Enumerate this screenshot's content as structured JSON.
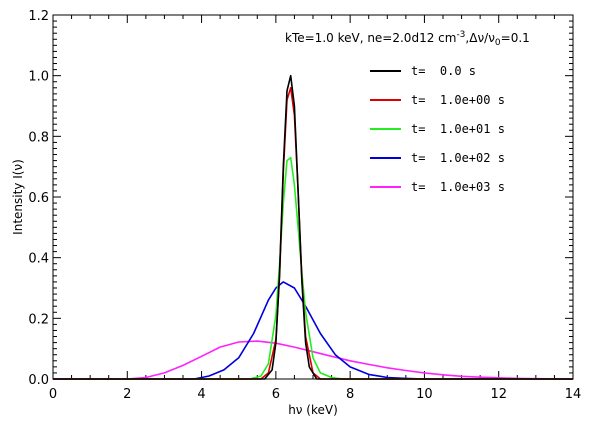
{
  "chart_data": {
    "type": "line",
    "annotation": {
      "kte": "kTe=1.0 keV, ne=2.0d12 cm",
      "exp": "-3",
      "dnu": ",Δν/ν",
      "sub": "0",
      "eq": "=0.1"
    },
    "xlabel": "hν (keV)",
    "ylabel": "Intensity I(ν)",
    "xlim": [
      0,
      14
    ],
    "ylim": [
      0,
      1.2
    ],
    "x_ticks": [
      0,
      2,
      4,
      6,
      8,
      10,
      12,
      14
    ],
    "x_tick_labels": [
      "0",
      "2",
      "4",
      "6",
      "8",
      "10",
      "12",
      "14"
    ],
    "y_ticks": [
      0,
      0.2,
      0.4,
      0.6,
      0.8,
      1.0,
      1.2
    ],
    "y_tick_labels": [
      "0.0",
      "0.2",
      "0.4",
      "0.6",
      "0.8",
      "1.0",
      "1.2"
    ],
    "legend_position": "top-right",
    "series": [
      {
        "name": "t=  0.0 s",
        "color": "#000000",
        "x": [
          0,
          5.7,
          5.9,
          6.0,
          6.1,
          6.2,
          6.3,
          6.4,
          6.5,
          6.6,
          6.7,
          6.8,
          6.9,
          7.1,
          14
        ],
        "y": [
          0,
          0.0,
          0.03,
          0.12,
          0.35,
          0.7,
          0.95,
          1.0,
          0.9,
          0.62,
          0.32,
          0.12,
          0.04,
          0.0,
          0
        ]
      },
      {
        "name": "t=  1.0e+00 s",
        "color": "#dd0000",
        "x": [
          0,
          5.6,
          5.8,
          6.0,
          6.1,
          6.2,
          6.3,
          6.4,
          6.5,
          6.6,
          6.7,
          6.8,
          7.0,
          7.2,
          14
        ],
        "y": [
          0,
          0.0,
          0.02,
          0.13,
          0.34,
          0.68,
          0.92,
          0.96,
          0.87,
          0.62,
          0.33,
          0.14,
          0.02,
          0.0,
          0
        ]
      },
      {
        "name": "t=  1.0e+01 s",
        "color": "#22ee22",
        "x": [
          0,
          5.3,
          5.6,
          5.8,
          6.0,
          6.1,
          6.2,
          6.3,
          6.4,
          6.5,
          6.6,
          6.7,
          6.8,
          7.0,
          7.2,
          7.5,
          7.8,
          14
        ],
        "y": [
          0,
          0.0,
          0.01,
          0.05,
          0.21,
          0.38,
          0.58,
          0.72,
          0.73,
          0.64,
          0.5,
          0.35,
          0.22,
          0.07,
          0.02,
          0.005,
          0.0,
          0
        ]
      },
      {
        "name": "t=  1.0e+02 s",
        "color": "#0000dd",
        "x": [
          0,
          3.8,
          4.2,
          4.6,
          5.0,
          5.4,
          5.8,
          6.0,
          6.2,
          6.5,
          6.8,
          7.2,
          7.6,
          8.0,
          8.5,
          9.0,
          9.5,
          10.0,
          14
        ],
        "y": [
          0,
          0.0,
          0.01,
          0.03,
          0.07,
          0.15,
          0.26,
          0.3,
          0.32,
          0.3,
          0.24,
          0.15,
          0.08,
          0.04,
          0.015,
          0.005,
          0.002,
          0.0,
          0
        ]
      },
      {
        "name": "t=  1.0e+03 s",
        "color": "#ff22ff",
        "x": [
          0,
          2,
          2.5,
          3,
          3.5,
          4,
          4.5,
          5,
          5.5,
          6,
          6.5,
          7,
          7.5,
          8,
          8.5,
          9,
          9.5,
          10,
          10.5,
          11,
          11.5,
          12,
          12.5,
          13,
          14
        ],
        "y": [
          0,
          0.0,
          0.005,
          0.02,
          0.045,
          0.075,
          0.105,
          0.122,
          0.125,
          0.118,
          0.105,
          0.09,
          0.075,
          0.06,
          0.048,
          0.037,
          0.028,
          0.02,
          0.014,
          0.009,
          0.006,
          0.004,
          0.002,
          0.001,
          0
        ]
      }
    ]
  }
}
